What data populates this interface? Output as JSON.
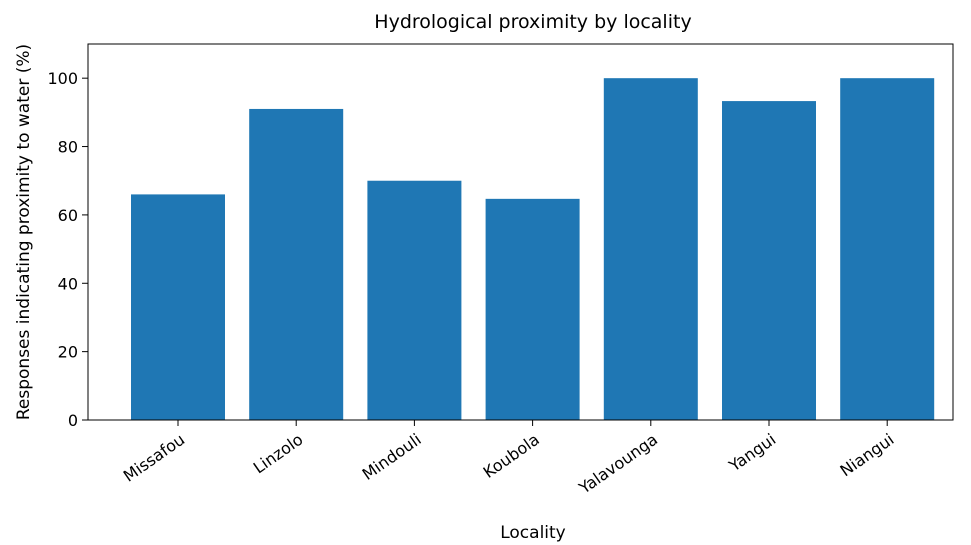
{
  "chart_data": {
    "type": "bar",
    "title": "Hydrological proximity by locality",
    "x_label": "Locality",
    "y_label": "Responses indicating proximity to water (%)",
    "categories": [
      "Missafou",
      "Linzolo",
      "Mindouli",
      "Koubola",
      "Yalavounga",
      "Yangui",
      "Niangui"
    ],
    "values": [
      66,
      91,
      70,
      64.7,
      100,
      93.3,
      100
    ],
    "color": "#1f77b4",
    "ylim": [
      0,
      110
    ],
    "yticks": [
      0,
      20,
      40,
      60,
      80,
      100
    ],
    "grid": false
  }
}
